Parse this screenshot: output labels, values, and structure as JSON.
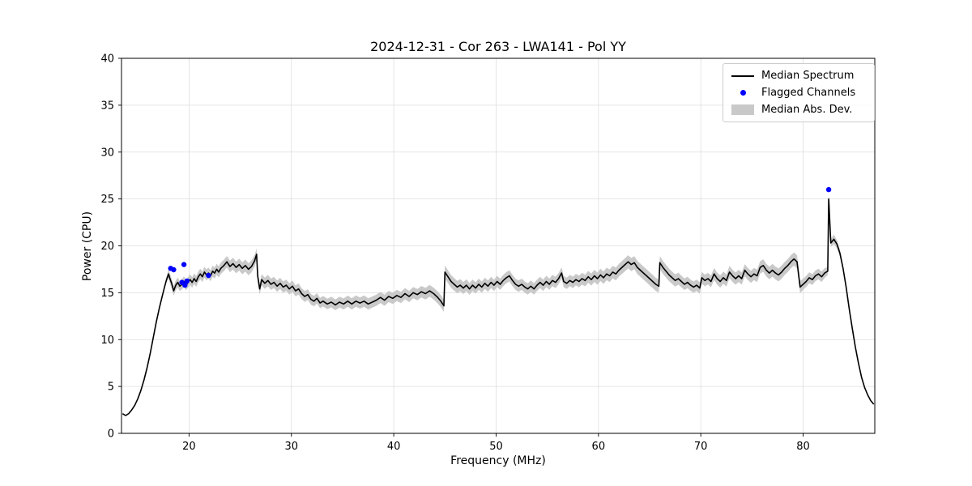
{
  "chart_data": {
    "type": "line",
    "title": "2024-12-31 - Cor 263 - LWA141 - Pol YY",
    "xlabel": "Frequency (MHz)",
    "ylabel": "Power (CPU)",
    "xlim": [
      13.4,
      87.0
    ],
    "ylim": [
      0,
      40
    ],
    "xticks": [
      20,
      30,
      40,
      50,
      60,
      70,
      80
    ],
    "yticks": [
      0,
      5,
      10,
      15,
      20,
      25,
      30,
      35,
      40
    ],
    "grid": true,
    "colors": {
      "line": "#000000",
      "flagged": "#0000ff",
      "band": "#c9c9c9",
      "grid": "#dedede",
      "axes": "#000000"
    },
    "legend": {
      "position": "upper right",
      "entries": [
        {
          "label": "Median Spectrum",
          "type": "line",
          "color": "#000000"
        },
        {
          "label": "Flagged Channels",
          "type": "dot",
          "color": "#0000ff"
        },
        {
          "label": "Median Abs. Dev.",
          "type": "patch",
          "color": "#c9c9c9"
        }
      ]
    },
    "series": [
      {
        "name": "Median Spectrum",
        "points": [
          [
            13.5,
            2.1
          ],
          [
            13.8,
            1.9
          ],
          [
            14.1,
            2.1
          ],
          [
            14.4,
            2.5
          ],
          [
            14.7,
            3.0
          ],
          [
            15.0,
            3.7
          ],
          [
            15.3,
            4.6
          ],
          [
            15.6,
            5.7
          ],
          [
            15.9,
            7.0
          ],
          [
            16.2,
            8.5
          ],
          [
            16.5,
            10.2
          ],
          [
            16.8,
            11.9
          ],
          [
            17.1,
            13.4
          ],
          [
            17.4,
            14.7
          ],
          [
            17.6,
            15.6
          ],
          [
            17.8,
            16.4
          ],
          [
            18.0,
            17.0
          ],
          [
            18.1,
            16.6
          ],
          [
            18.3,
            16.0
          ],
          [
            18.5,
            15.2
          ],
          [
            18.7,
            15.8
          ],
          [
            18.9,
            16.1
          ],
          [
            19.1,
            15.7
          ],
          [
            19.3,
            15.9
          ],
          [
            19.5,
            16.2
          ],
          [
            19.7,
            15.8
          ],
          [
            19.9,
            16.1
          ],
          [
            20.1,
            16.4
          ],
          [
            20.3,
            16.1
          ],
          [
            20.5,
            16.5
          ],
          [
            20.7,
            16.2
          ],
          [
            20.9,
            16.7
          ],
          [
            21.1,
            17.0
          ],
          [
            21.3,
            16.7
          ],
          [
            21.5,
            17.2
          ],
          [
            21.7,
            16.9
          ],
          [
            21.9,
            17.1
          ],
          [
            22.1,
            16.8
          ],
          [
            22.3,
            17.3
          ],
          [
            22.5,
            17.1
          ],
          [
            22.7,
            17.5
          ],
          [
            22.9,
            17.2
          ],
          [
            23.1,
            17.6
          ],
          [
            23.4,
            17.9
          ],
          [
            23.7,
            18.3
          ],
          [
            24.0,
            17.8
          ],
          [
            24.3,
            18.1
          ],
          [
            24.6,
            17.7
          ],
          [
            24.9,
            18.0
          ],
          [
            25.2,
            17.6
          ],
          [
            25.5,
            17.9
          ],
          [
            25.8,
            17.5
          ],
          [
            26.1,
            17.8
          ],
          [
            26.4,
            18.4
          ],
          [
            26.6,
            19.1
          ],
          [
            26.7,
            16.8
          ],
          [
            26.9,
            15.4
          ],
          [
            27.1,
            16.4
          ],
          [
            27.4,
            16.0
          ],
          [
            27.7,
            16.3
          ],
          [
            28.0,
            15.9
          ],
          [
            28.3,
            16.1
          ],
          [
            28.6,
            15.7
          ],
          [
            28.9,
            16.0
          ],
          [
            29.2,
            15.6
          ],
          [
            29.5,
            15.8
          ],
          [
            29.8,
            15.4
          ],
          [
            30.1,
            15.7
          ],
          [
            30.4,
            15.2
          ],
          [
            30.7,
            15.4
          ],
          [
            31.0,
            14.9
          ],
          [
            31.3,
            14.6
          ],
          [
            31.6,
            14.8
          ],
          [
            31.9,
            14.3
          ],
          [
            32.2,
            14.1
          ],
          [
            32.5,
            14.4
          ],
          [
            32.8,
            13.9
          ],
          [
            33.1,
            14.1
          ],
          [
            33.5,
            13.8
          ],
          [
            33.9,
            14.0
          ],
          [
            34.3,
            13.7
          ],
          [
            34.7,
            14.0
          ],
          [
            35.1,
            13.8
          ],
          [
            35.5,
            14.1
          ],
          [
            35.9,
            13.8
          ],
          [
            36.3,
            14.1
          ],
          [
            36.7,
            13.9
          ],
          [
            37.1,
            14.1
          ],
          [
            37.5,
            13.8
          ],
          [
            37.9,
            14.0
          ],
          [
            38.3,
            14.2
          ],
          [
            38.7,
            14.5
          ],
          [
            39.1,
            14.2
          ],
          [
            39.5,
            14.6
          ],
          [
            39.9,
            14.4
          ],
          [
            40.3,
            14.7
          ],
          [
            40.7,
            14.5
          ],
          [
            41.1,
            14.9
          ],
          [
            41.5,
            14.6
          ],
          [
            41.9,
            15.0
          ],
          [
            42.3,
            14.8
          ],
          [
            42.7,
            15.1
          ],
          [
            43.1,
            14.9
          ],
          [
            43.5,
            15.2
          ],
          [
            43.9,
            14.9
          ],
          [
            44.3,
            14.5
          ],
          [
            44.6,
            14.1
          ],
          [
            44.9,
            13.6
          ],
          [
            45.0,
            17.2
          ],
          [
            45.3,
            16.7
          ],
          [
            45.6,
            16.2
          ],
          [
            45.9,
            15.9
          ],
          [
            46.2,
            15.6
          ],
          [
            46.5,
            15.8
          ],
          [
            46.8,
            15.5
          ],
          [
            47.1,
            15.8
          ],
          [
            47.4,
            15.4
          ],
          [
            47.7,
            15.8
          ],
          [
            48.0,
            15.5
          ],
          [
            48.3,
            15.9
          ],
          [
            48.6,
            15.6
          ],
          [
            48.9,
            16.0
          ],
          [
            49.2,
            15.7
          ],
          [
            49.5,
            16.1
          ],
          [
            49.8,
            15.8
          ],
          [
            50.1,
            16.2
          ],
          [
            50.4,
            15.9
          ],
          [
            50.7,
            16.3
          ],
          [
            51.0,
            16.6
          ],
          [
            51.3,
            16.8
          ],
          [
            51.6,
            16.3
          ],
          [
            51.9,
            15.9
          ],
          [
            52.2,
            15.7
          ],
          [
            52.5,
            15.9
          ],
          [
            52.8,
            15.6
          ],
          [
            53.1,
            15.4
          ],
          [
            53.4,
            15.7
          ],
          [
            53.7,
            15.4
          ],
          [
            54.0,
            15.8
          ],
          [
            54.3,
            16.1
          ],
          [
            54.6,
            15.8
          ],
          [
            54.9,
            16.2
          ],
          [
            55.2,
            15.9
          ],
          [
            55.5,
            16.3
          ],
          [
            55.8,
            16.1
          ],
          [
            56.1,
            16.5
          ],
          [
            56.4,
            17.1
          ],
          [
            56.6,
            16.2
          ],
          [
            56.9,
            16.0
          ],
          [
            57.2,
            16.3
          ],
          [
            57.5,
            16.1
          ],
          [
            57.8,
            16.4
          ],
          [
            58.1,
            16.2
          ],
          [
            58.4,
            16.5
          ],
          [
            58.7,
            16.3
          ],
          [
            59.0,
            16.7
          ],
          [
            59.3,
            16.4
          ],
          [
            59.6,
            16.8
          ],
          [
            59.9,
            16.5
          ],
          [
            60.2,
            16.9
          ],
          [
            60.5,
            16.6
          ],
          [
            60.8,
            17.0
          ],
          [
            61.1,
            16.8
          ],
          [
            61.4,
            17.2
          ],
          [
            61.7,
            17.0
          ],
          [
            62.0,
            17.4
          ],
          [
            62.3,
            17.7
          ],
          [
            62.6,
            18.0
          ],
          [
            62.9,
            18.3
          ],
          [
            63.2,
            18.0
          ],
          [
            63.5,
            18.2
          ],
          [
            63.8,
            17.7
          ],
          [
            64.1,
            17.4
          ],
          [
            64.4,
            17.1
          ],
          [
            64.7,
            16.8
          ],
          [
            65.0,
            16.5
          ],
          [
            65.3,
            16.2
          ],
          [
            65.6,
            15.9
          ],
          [
            65.9,
            15.7
          ],
          [
            66.0,
            18.2
          ],
          [
            66.3,
            17.7
          ],
          [
            66.6,
            17.3
          ],
          [
            66.9,
            16.9
          ],
          [
            67.2,
            16.6
          ],
          [
            67.5,
            16.3
          ],
          [
            67.8,
            16.5
          ],
          [
            68.1,
            16.2
          ],
          [
            68.4,
            15.9
          ],
          [
            68.7,
            16.1
          ],
          [
            69.0,
            15.8
          ],
          [
            69.3,
            15.6
          ],
          [
            69.6,
            15.8
          ],
          [
            69.9,
            15.5
          ],
          [
            70.1,
            16.6
          ],
          [
            70.4,
            16.3
          ],
          [
            70.7,
            16.5
          ],
          [
            71.0,
            16.2
          ],
          [
            71.3,
            17.0
          ],
          [
            71.6,
            16.5
          ],
          [
            71.9,
            16.2
          ],
          [
            72.2,
            16.6
          ],
          [
            72.5,
            16.3
          ],
          [
            72.8,
            17.2
          ],
          [
            73.1,
            16.8
          ],
          [
            73.4,
            16.5
          ],
          [
            73.7,
            16.8
          ],
          [
            74.0,
            16.5
          ],
          [
            74.3,
            17.4
          ],
          [
            74.6,
            17.0
          ],
          [
            74.9,
            16.7
          ],
          [
            75.2,
            17.0
          ],
          [
            75.5,
            16.8
          ],
          [
            75.8,
            17.7
          ],
          [
            76.1,
            17.9
          ],
          [
            76.4,
            17.4
          ],
          [
            76.7,
            17.1
          ],
          [
            77.0,
            17.4
          ],
          [
            77.3,
            17.1
          ],
          [
            77.6,
            16.9
          ],
          [
            77.9,
            17.2
          ],
          [
            78.2,
            17.6
          ],
          [
            78.5,
            17.9
          ],
          [
            78.8,
            18.3
          ],
          [
            79.1,
            18.6
          ],
          [
            79.4,
            18.3
          ],
          [
            79.7,
            15.6
          ],
          [
            80.0,
            15.9
          ],
          [
            80.3,
            16.2
          ],
          [
            80.6,
            16.6
          ],
          [
            80.9,
            16.4
          ],
          [
            81.2,
            16.8
          ],
          [
            81.5,
            17.0
          ],
          [
            81.8,
            16.7
          ],
          [
            82.1,
            17.1
          ],
          [
            82.4,
            17.3
          ],
          [
            82.5,
            25.0
          ],
          [
            82.7,
            20.3
          ],
          [
            83.0,
            20.7
          ],
          [
            83.3,
            20.2
          ],
          [
            83.6,
            19.2
          ],
          [
            83.9,
            17.6
          ],
          [
            84.2,
            15.6
          ],
          [
            84.5,
            13.3
          ],
          [
            84.8,
            11.2
          ],
          [
            85.1,
            9.2
          ],
          [
            85.4,
            7.5
          ],
          [
            85.7,
            6.0
          ],
          [
            86.0,
            4.9
          ],
          [
            86.3,
            4.1
          ],
          [
            86.6,
            3.5
          ],
          [
            86.9,
            3.1
          ]
        ]
      }
    ],
    "mad_anchors": [
      [
        13.4,
        0
      ],
      [
        17.5,
        0
      ],
      [
        18.0,
        0.5
      ],
      [
        20,
        0.55
      ],
      [
        23,
        0.6
      ],
      [
        26,
        0.65
      ],
      [
        27,
        0.6
      ],
      [
        30,
        0.6
      ],
      [
        33,
        0.55
      ],
      [
        36,
        0.6
      ],
      [
        39,
        0.6
      ],
      [
        42,
        0.6
      ],
      [
        44.9,
        0.65
      ],
      [
        45,
        0.7
      ],
      [
        48,
        0.6
      ],
      [
        51,
        0.6
      ],
      [
        54,
        0.6
      ],
      [
        57,
        0.6
      ],
      [
        60,
        0.65
      ],
      [
        63,
        0.7
      ],
      [
        66,
        0.7
      ],
      [
        69,
        0.6
      ],
      [
        72,
        0.65
      ],
      [
        75,
        0.65
      ],
      [
        78,
        0.7
      ],
      [
        79.4,
        0.7
      ],
      [
        80,
        0.6
      ],
      [
        82,
        0.55
      ],
      [
        82.5,
        0.4
      ],
      [
        83,
        0.5
      ],
      [
        83.9,
        0.3
      ],
      [
        84.3,
        0
      ],
      [
        87.0,
        0
      ]
    ],
    "flagged_channels": [
      [
        18.2,
        17.6
      ],
      [
        18.5,
        17.45
      ],
      [
        19.5,
        18.0
      ],
      [
        19.3,
        16.1
      ],
      [
        19.6,
        15.8
      ],
      [
        19.8,
        16.25
      ],
      [
        21.9,
        16.85
      ],
      [
        82.5,
        26.0
      ]
    ]
  }
}
